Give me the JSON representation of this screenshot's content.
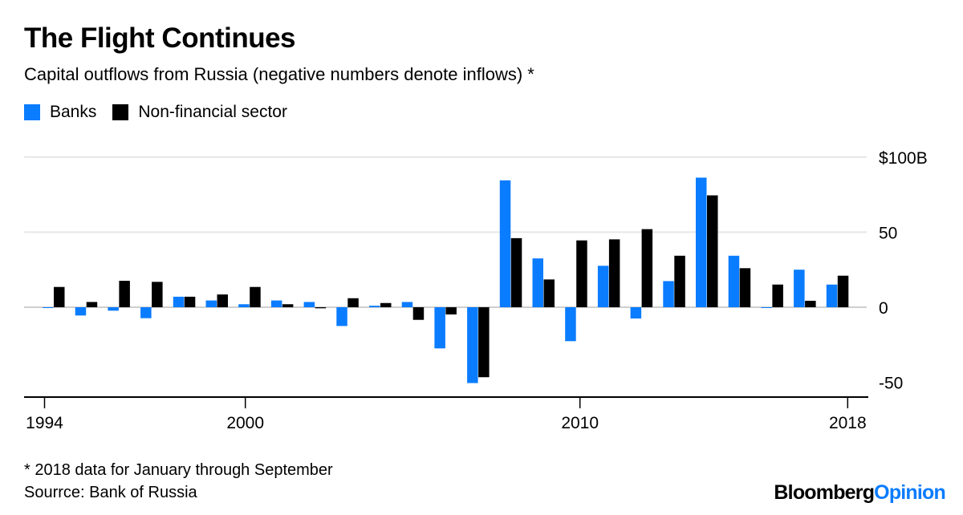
{
  "colors": {
    "banks": "#0a7cff",
    "nonfin": "#000000",
    "grid": "#e6e6e6"
  },
  "title": "The Flight Continues",
  "subtitle": "Capital outflows from Russia (negative numbers denote inflows) *",
  "footnote": "* 2018 data for January through September",
  "source": "Sourrce: Bank of Russia",
  "logo": {
    "main": "Bloomberg",
    "accent": "Opinion"
  },
  "chart_data": {
    "type": "bar",
    "title": "The Flight Continues",
    "xlabel": "",
    "ylabel": "",
    "ylim": [
      -50,
      100
    ],
    "yticks": [
      {
        "value": 100,
        "label": "$100B"
      },
      {
        "value": 50,
        "label": "50"
      },
      {
        "value": 0,
        "label": "0"
      },
      {
        "value": -50,
        "label": "-50"
      }
    ],
    "xticks": [
      {
        "value": 1994,
        "label": "1994"
      },
      {
        "value": 2000,
        "label": "2000"
      },
      {
        "value": 2010,
        "label": "2010"
      },
      {
        "value": 2018,
        "label": "2018"
      }
    ],
    "legend": "top-left",
    "grid": true,
    "categories": [
      1994,
      1995,
      1996,
      1997,
      1998,
      1999,
      2000,
      2001,
      2002,
      2003,
      2004,
      2005,
      2006,
      2007,
      2008,
      2009,
      2010,
      2011,
      2012,
      2013,
      2014,
      2015,
      2016,
      2017,
      2018
    ],
    "series": [
      {
        "name": "Banks",
        "values": [
          -0.5,
          -5.5,
          -2.3,
          -7.3,
          7,
          4.5,
          2,
          4.5,
          3.5,
          -12.5,
          1,
          3.5,
          -27.4,
          -50.5,
          84.5,
          32.5,
          -22.6,
          27.6,
          -7.5,
          17.4,
          86.3,
          34.3,
          -0.5,
          25,
          15.1
        ]
      },
      {
        "name": "Non-financial sector",
        "values": [
          13.5,
          3.5,
          17.6,
          16.9,
          7,
          8.5,
          13.5,
          2,
          -0.7,
          6,
          2.8,
          -8.4,
          -4.8,
          -46.6,
          46,
          18.5,
          44.5,
          45.2,
          52,
          34.3,
          74.5,
          26,
          15.1,
          4.3,
          21
        ]
      }
    ]
  }
}
